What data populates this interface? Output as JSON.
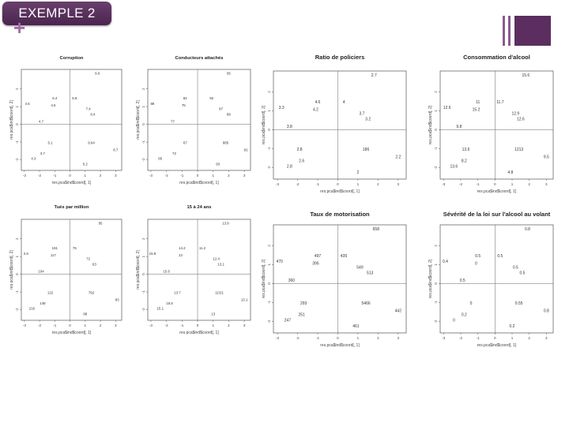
{
  "slide": {
    "title": "EXEMPLE 2",
    "plus_icon": "plus-icon",
    "accent_color": "#5c2e5f",
    "title_box_color": "#4f2a55"
  },
  "chart_data": [
    {
      "type": "scatter",
      "title": "Corruption",
      "xlabel": "res.pca$ind$coord[, 1]",
      "ylabel": "res.pca$ind$coord[, 2]",
      "xticks": [
        "-3",
        "-2",
        "-1",
        "0",
        "1",
        "2",
        "3"
      ],
      "yticks": [
        "-2",
        "-1",
        "0",
        "1",
        "2"
      ],
      "xlim": [
        -3.2,
        3.4
      ],
      "ylim": [
        -2.6,
        3.1
      ],
      "points": [
        {
          "label": "9.6",
          "x": 1.8,
          "y": 2.8
        },
        {
          "label": "6.4",
          "x": -1.0,
          "y": 1.4
        },
        {
          "label": "5.8",
          "x": 0.3,
          "y": 1.4
        },
        {
          "label": "4.6",
          "x": -2.8,
          "y": 1.1
        },
        {
          "label": "4.6",
          "x": -1.1,
          "y": 1.0
        },
        {
          "label": "7.4",
          "x": 1.2,
          "y": 0.8
        },
        {
          "label": "8.4",
          "x": 1.5,
          "y": 0.5
        },
        {
          "label": "4.7",
          "x": -1.9,
          "y": 0.1
        },
        {
          "label": "5.1",
          "x": -1.3,
          "y": -1.1
        },
        {
          "label": "9.64",
          "x": 1.4,
          "y": -1.1
        },
        {
          "label": "8.7",
          "x": 3.0,
          "y": -1.5
        },
        {
          "label": "3.7",
          "x": -1.8,
          "y": -1.7
        },
        {
          "label": "4.3",
          "x": -2.4,
          "y": -2.0
        },
        {
          "label": "5.2",
          "x": 1.0,
          "y": -2.3
        }
      ]
    },
    {
      "type": "scatter",
      "title": "Conducteurs attachés",
      "xlabel": "res.pca$ind$coord[, 1]",
      "ylabel": "res.pca$ind$coord[, 2]",
      "xticks": [
        "-3",
        "-2",
        "-1",
        "0",
        "1",
        "2",
        "3"
      ],
      "yticks": [
        "-2",
        "-1",
        "0",
        "1",
        "2"
      ],
      "xlim": [
        -3.2,
        3.4
      ],
      "ylim": [
        -2.6,
        3.1
      ],
      "points": [
        {
          "label": "95",
          "x": 2.0,
          "y": 2.8
        },
        {
          "label": "82",
          "x": -0.8,
          "y": 1.4
        },
        {
          "label": "88",
          "x": -2.9,
          "y": 1.1
        },
        {
          "label": "75",
          "x": -0.9,
          "y": 1.0
        },
        {
          "label": "92",
          "x": 0.9,
          "y": 1.4
        },
        {
          "label": "87",
          "x": 1.5,
          "y": 0.8
        },
        {
          "label": "89",
          "x": 2.0,
          "y": 0.5
        },
        {
          "label": "77",
          "x": -1.6,
          "y": 0.1
        },
        {
          "label": "67",
          "x": -0.8,
          "y": -1.1
        },
        {
          "label": "885",
          "x": 1.8,
          "y": -1.1
        },
        {
          "label": "92",
          "x": 3.1,
          "y": -1.5
        },
        {
          "label": "72",
          "x": -1.5,
          "y": -1.7
        },
        {
          "label": "85",
          "x": -2.4,
          "y": -2.0
        },
        {
          "label": "93",
          "x": 1.3,
          "y": -2.3
        }
      ]
    },
    {
      "type": "scatter",
      "title": "Ratio de policiers",
      "xlabel": "res.pca$ind$coord[, 1]",
      "ylabel": "res.pca$ind$coord[, 2]",
      "xticks": [
        "-3",
        "-2",
        "-1",
        "0",
        "1",
        "2",
        "3"
      ],
      "yticks": [
        "-2",
        "-1",
        "0",
        "1",
        "2"
      ],
      "xlim": [
        -3.2,
        3.4
      ],
      "ylim": [
        -2.6,
        3.1
      ],
      "points": [
        {
          "label": "2.7",
          "x": 1.8,
          "y": 2.8
        },
        {
          "label": "4.6",
          "x": -1.0,
          "y": 1.4
        },
        {
          "label": "4",
          "x": 0.3,
          "y": 1.4
        },
        {
          "label": "3.3",
          "x": -2.8,
          "y": 1.1
        },
        {
          "label": "4.2",
          "x": -1.1,
          "y": 1.0
        },
        {
          "label": "3.7",
          "x": 1.2,
          "y": 0.8
        },
        {
          "label": "3.2",
          "x": 1.5,
          "y": 0.5
        },
        {
          "label": "3.8",
          "x": -2.4,
          "y": 0.1
        },
        {
          "label": "2.8",
          "x": -1.9,
          "y": -1.1
        },
        {
          "label": "186",
          "x": 1.4,
          "y": -1.1
        },
        {
          "label": "2.2",
          "x": 3.0,
          "y": -1.5
        },
        {
          "label": "2.6",
          "x": -1.8,
          "y": -1.7
        },
        {
          "label": "2.8",
          "x": -2.4,
          "y": -2.0
        },
        {
          "label": "2",
          "x": 1.0,
          "y": -2.3
        }
      ]
    },
    {
      "type": "scatter",
      "title": "Consommation d'alcool",
      "xlabel": "res.pca$ind$coord[, 1]",
      "ylabel": "res.pca$ind$coord[, 2]",
      "xticks": [
        "-3",
        "-2",
        "-1",
        "0",
        "1",
        "2",
        "3"
      ],
      "yticks": [
        "-2",
        "-1",
        "0",
        "1",
        "2"
      ],
      "xlim": [
        -3.2,
        3.4
      ],
      "ylim": [
        -2.6,
        3.1
      ],
      "points": [
        {
          "label": "15.6",
          "x": 1.8,
          "y": 2.8
        },
        {
          "label": "11",
          "x": -1.0,
          "y": 1.4
        },
        {
          "label": "11.7",
          "x": 0.3,
          "y": 1.4
        },
        {
          "label": "12.6",
          "x": -2.8,
          "y": 1.1
        },
        {
          "label": "15.2",
          "x": -1.1,
          "y": 1.0
        },
        {
          "label": "12.9",
          "x": 1.2,
          "y": 0.8
        },
        {
          "label": "12.6",
          "x": 1.5,
          "y": 0.5
        },
        {
          "label": "9.8",
          "x": -2.1,
          "y": 0.1
        },
        {
          "label": "13.6",
          "x": -1.7,
          "y": -1.1
        },
        {
          "label": "1213",
          "x": 1.4,
          "y": -1.1
        },
        {
          "label": "9.5",
          "x": 3.0,
          "y": -1.5
        },
        {
          "label": "8.2",
          "x": -1.8,
          "y": -1.7
        },
        {
          "label": "13.6",
          "x": -2.4,
          "y": -2.0
        },
        {
          "label": "4.8",
          "x": 0.9,
          "y": -2.3
        }
      ]
    },
    {
      "type": "scatter",
      "title": "Tués par million",
      "xlabel": "res.pca$ind$coord[, 1]",
      "ylabel": "res.pca$ind$coord[, 2]",
      "xticks": [
        "-3",
        "-2",
        "-1",
        "0",
        "1",
        "2",
        "3"
      ],
      "yticks": [
        "-2",
        "-1",
        "0",
        "1",
        "2"
      ],
      "xlim": [
        -3.2,
        3.4
      ],
      "ylim": [
        -2.6,
        3.1
      ],
      "points": [
        {
          "label": "95",
          "x": 2.0,
          "y": 2.8
        },
        {
          "label": "151",
          "x": -1.0,
          "y": 1.4
        },
        {
          "label": "2.6",
          "x": -2.9,
          "y": 1.1
        },
        {
          "label": "117",
          "x": -1.1,
          "y": 1.0
        },
        {
          "label": "76",
          "x": 0.3,
          "y": 1.4
        },
        {
          "label": "72",
          "x": 1.2,
          "y": 0.8
        },
        {
          "label": "63",
          "x": 1.6,
          "y": 0.5
        },
        {
          "label": "104",
          "x": -1.9,
          "y": 0.1
        },
        {
          "label": "122",
          "x": -1.3,
          "y": -1.1
        },
        {
          "label": "792",
          "x": 1.4,
          "y": -1.1
        },
        {
          "label": "83",
          "x": 3.1,
          "y": -1.5
        },
        {
          "label": "148",
          "x": -1.8,
          "y": -1.7
        },
        {
          "label": "216",
          "x": -2.5,
          "y": -2.0
        },
        {
          "label": "88",
          "x": 1.0,
          "y": -2.3
        }
      ]
    },
    {
      "type": "scatter",
      "title": "15 à 24 ans",
      "xlabel": "res.pca$ind$coord[, 1]",
      "ylabel": "res.pca$ind$coord[, 2]",
      "xticks": [
        "-3",
        "-2",
        "-1",
        "0",
        "1",
        "2",
        "3"
      ],
      "yticks": [
        "-2",
        "-1",
        "0",
        "1",
        "2"
      ],
      "xlim": [
        -3.2,
        3.4
      ],
      "ylim": [
        -2.6,
        3.1
      ],
      "points": [
        {
          "label": "13.8",
          "x": 1.8,
          "y": 2.8
        },
        {
          "label": "14.2",
          "x": -1.0,
          "y": 1.4
        },
        {
          "label": "15.9",
          "x": -2.9,
          "y": 1.1
        },
        {
          "label": "13",
          "x": -1.1,
          "y": 1.0
        },
        {
          "label": "11.2",
          "x": 0.3,
          "y": 1.4
        },
        {
          "label": "12.4",
          "x": 1.2,
          "y": 0.8
        },
        {
          "label": "13.1",
          "x": 1.5,
          "y": 0.5
        },
        {
          "label": "15.6",
          "x": -2.0,
          "y": 0.1
        },
        {
          "label": "13.7",
          "x": -1.3,
          "y": -1.1
        },
        {
          "label": "11/21",
          "x": 1.4,
          "y": -1.1
        },
        {
          "label": "13.1",
          "x": 3.0,
          "y": -1.5
        },
        {
          "label": "15.5",
          "x": -1.8,
          "y": -1.7
        },
        {
          "label": "15.1",
          "x": -2.4,
          "y": -2.0
        },
        {
          "label": "13",
          "x": 1.0,
          "y": -2.3
        }
      ]
    },
    {
      "type": "scatter",
      "title": "Taux de motorisation",
      "xlabel": "res.pca$ind$coord[, 1]",
      "ylabel": "res.pca$ind$coord[, 2]",
      "xticks": [
        "-3",
        "-2",
        "-1",
        "0",
        "1",
        "2",
        "3"
      ],
      "yticks": [
        "-2",
        "-1",
        "0",
        "1",
        "2"
      ],
      "xlim": [
        -3.2,
        3.4
      ],
      "ylim": [
        -2.6,
        3.1
      ],
      "points": [
        {
          "label": "658",
          "x": 1.9,
          "y": 2.8
        },
        {
          "label": "497",
          "x": -1.0,
          "y": 1.4
        },
        {
          "label": "435",
          "x": 0.3,
          "y": 1.4
        },
        {
          "label": "470",
          "x": -2.9,
          "y": 1.1
        },
        {
          "label": "395",
          "x": -1.1,
          "y": 1.0
        },
        {
          "label": "549",
          "x": 1.1,
          "y": 0.8
        },
        {
          "label": "513",
          "x": 1.6,
          "y": 0.5
        },
        {
          "label": "360",
          "x": -2.3,
          "y": 0.1
        },
        {
          "label": "293",
          "x": -1.7,
          "y": -1.1
        },
        {
          "label": "5466",
          "x": 1.4,
          "y": -1.1
        },
        {
          "label": "442",
          "x": 3.0,
          "y": -1.5
        },
        {
          "label": "251",
          "x": -1.8,
          "y": -1.7
        },
        {
          "label": "247",
          "x": -2.5,
          "y": -2.0
        },
        {
          "label": "461",
          "x": 0.9,
          "y": -2.3
        }
      ]
    },
    {
      "type": "scatter",
      "title": "Sévérité de la loi sur l'alcool au volant",
      "xlabel": "res.pca$ind$coord[, 1]",
      "ylabel": "res.pca$ind$coord[, 2]",
      "xticks": [
        "-3",
        "-2",
        "-1",
        "0",
        "1",
        "2",
        "3"
      ],
      "yticks": [
        "-2",
        "-1",
        "0",
        "1",
        "2"
      ],
      "xlim": [
        -3.2,
        3.4
      ],
      "ylim": [
        -2.6,
        3.1
      ],
      "points": [
        {
          "label": "0.8",
          "x": 1.9,
          "y": 2.8
        },
        {
          "label": "0.5",
          "x": -1.0,
          "y": 1.4
        },
        {
          "label": "0.5",
          "x": 0.3,
          "y": 1.4
        },
        {
          "label": "0.4",
          "x": -2.9,
          "y": 1.1
        },
        {
          "label": "0",
          "x": -1.1,
          "y": 1.0
        },
        {
          "label": "0.5",
          "x": 1.2,
          "y": 0.8
        },
        {
          "label": "0.5",
          "x": 1.6,
          "y": 0.5
        },
        {
          "label": "0.5",
          "x": -1.9,
          "y": 0.1
        },
        {
          "label": "0",
          "x": -1.4,
          "y": -1.1
        },
        {
          "label": "0.55",
          "x": 1.4,
          "y": -1.1
        },
        {
          "label": "0.8",
          "x": 3.0,
          "y": -1.5
        },
        {
          "label": "0.2",
          "x": -1.8,
          "y": -1.7
        },
        {
          "label": "0",
          "x": -2.4,
          "y": -2.0
        },
        {
          "label": "0.2",
          "x": 1.0,
          "y": -2.3
        }
      ]
    }
  ]
}
